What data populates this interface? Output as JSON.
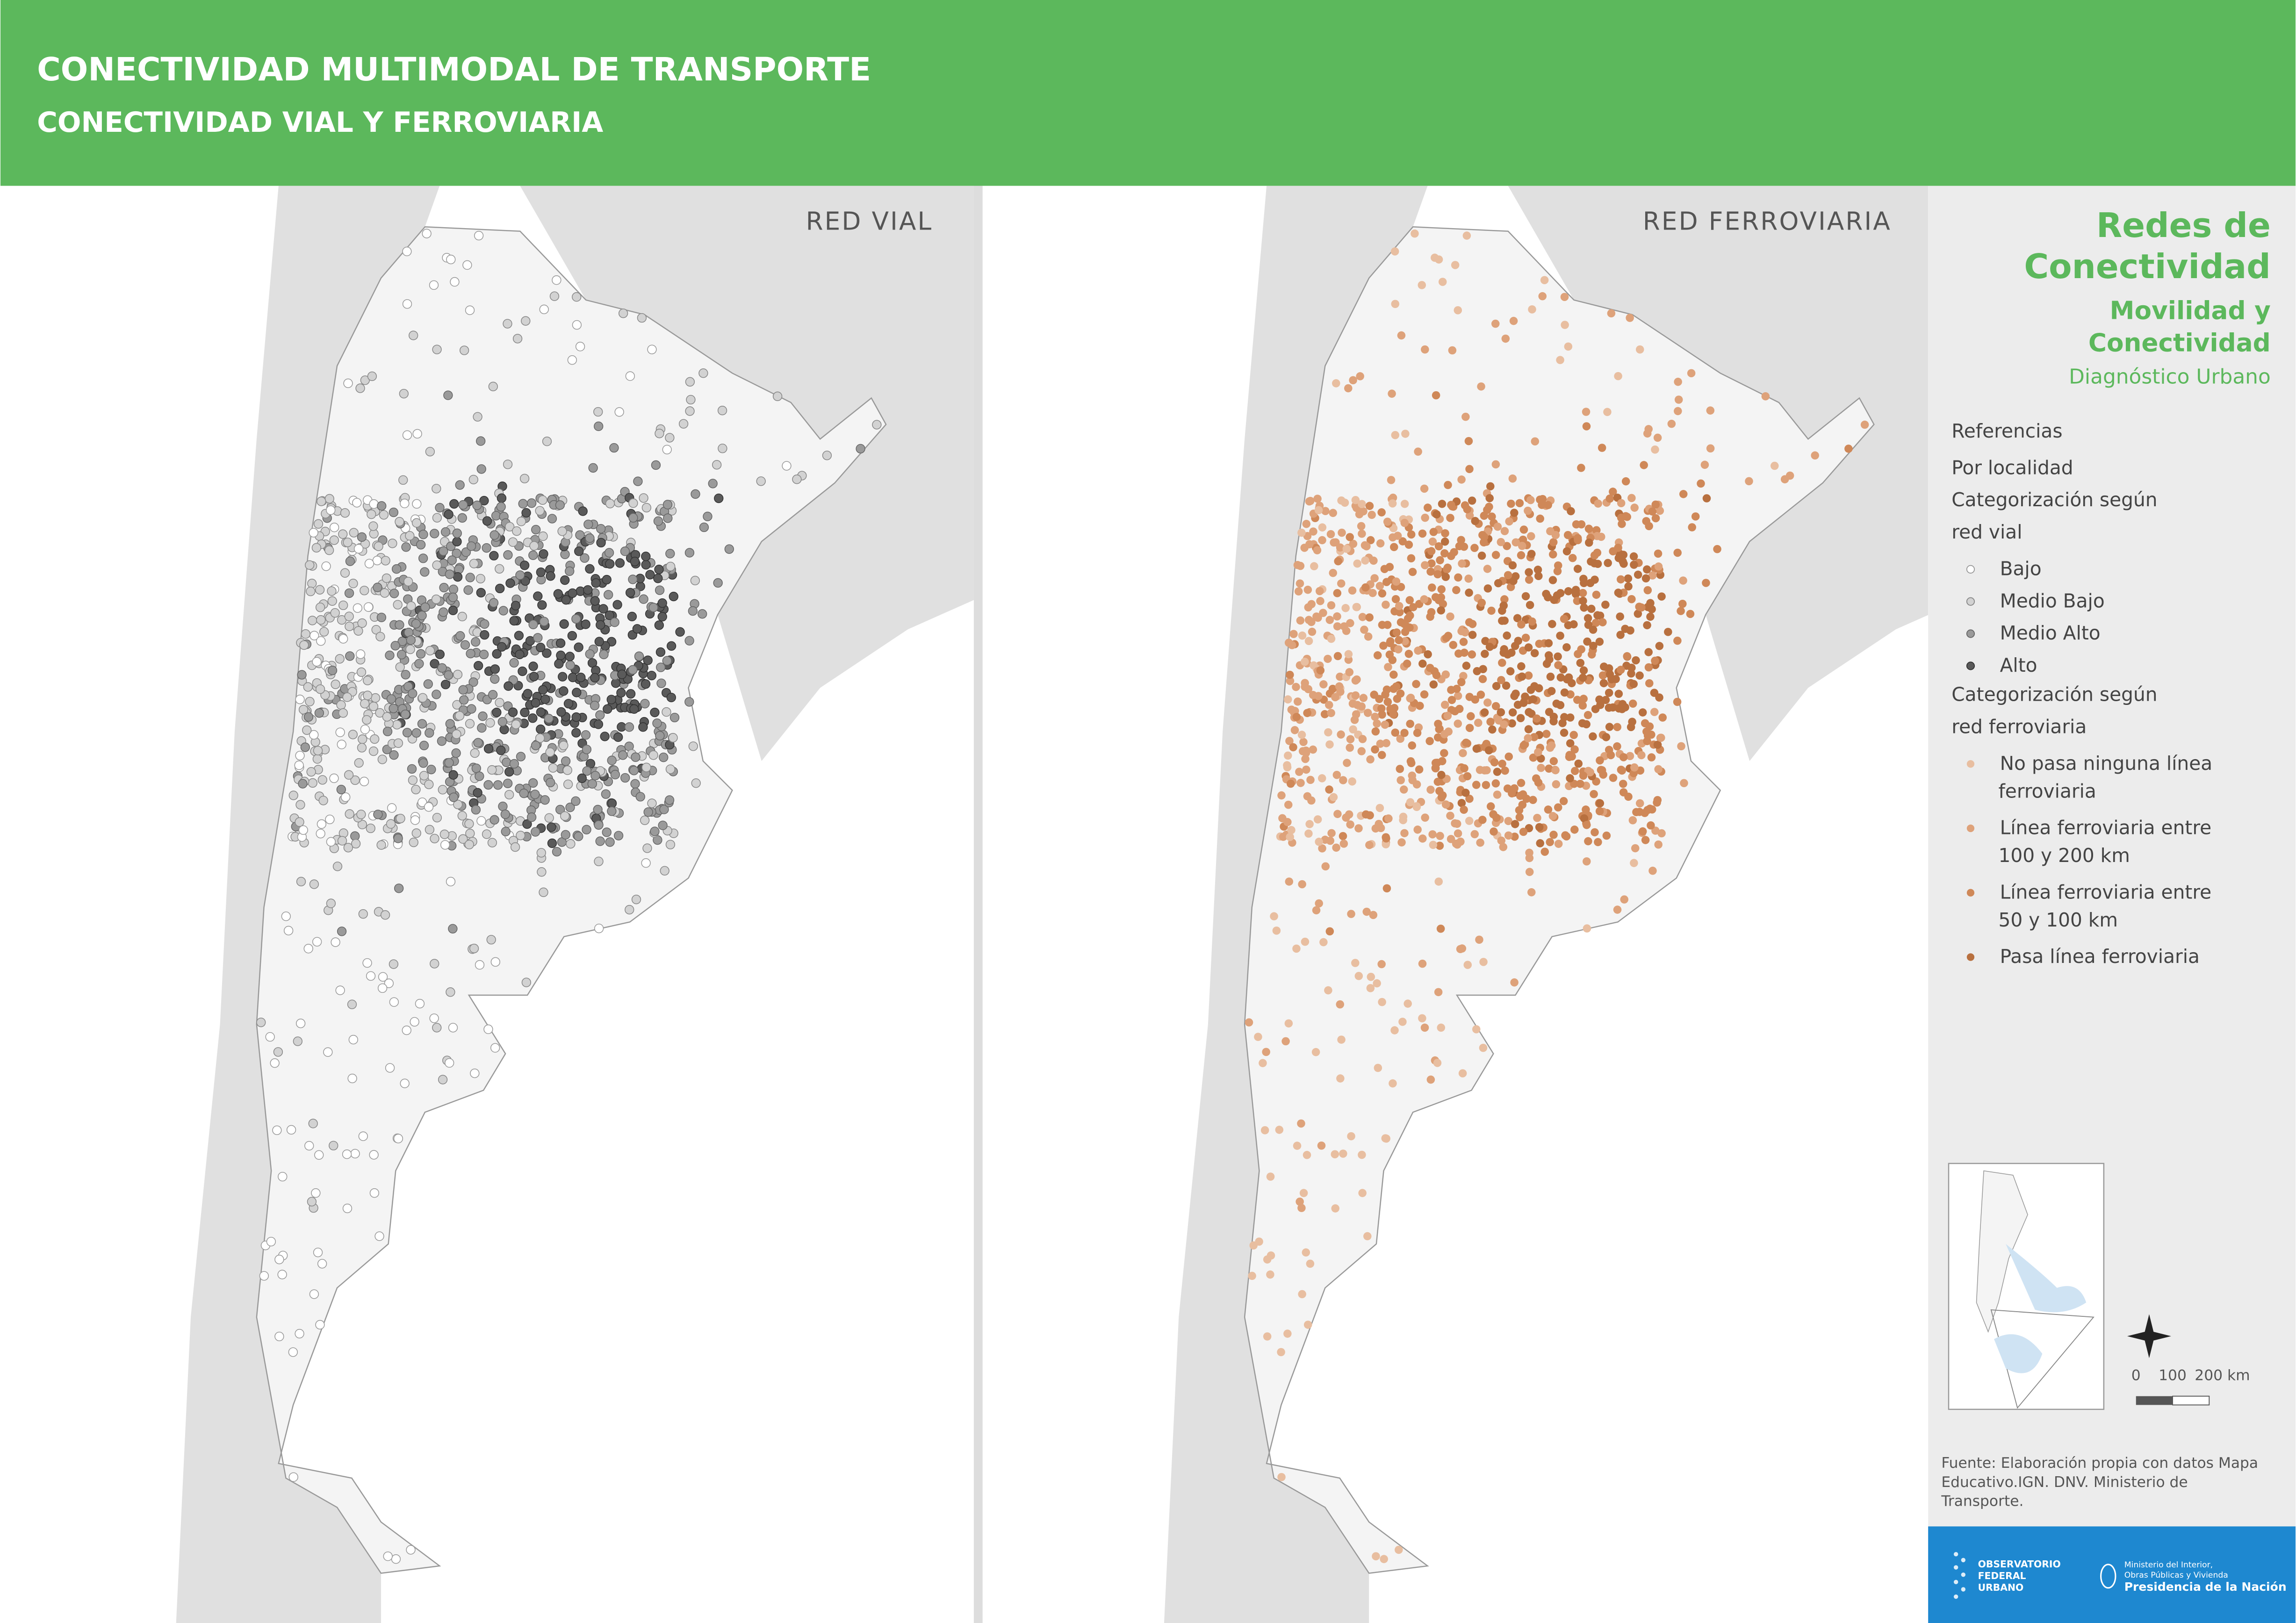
{
  "header": {
    "title": "CONECTIVIDAD MULTIMODAL DE TRANSPORTE",
    "subtitle": "CONECTIVIDAD VIAL Y FERROVIARIA"
  },
  "maps": [
    {
      "label": "RED VIAL"
    },
    {
      "label": "RED FERROVIARIA"
    }
  ],
  "sidebar": {
    "title_lines": [
      "Redes de",
      "Conectividad"
    ],
    "subtitle_lines": [
      "Movilidad y",
      "Conectividad"
    ],
    "tagline": "Diagnóstico Urbano",
    "legend": {
      "heading": "Referencias",
      "subheading": "Por localidad",
      "groups": [
        {
          "title_lines": [
            "Categorización según",
            "red vial"
          ],
          "items": [
            [
              "Bajo"
            ],
            [
              "Medio Bajo"
            ],
            [
              "Medio Alto"
            ],
            [
              "Alto"
            ]
          ]
        },
        {
          "title_lines": [
            "Categorización según",
            "red ferroviaria"
          ],
          "items": [
            [
              "No pasa ninguna línea",
              "ferroviaria"
            ],
            [
              "Línea ferroviaria entre",
              "100 y 200 km"
            ],
            [
              "Línea ferroviaria entre",
              "50 y 100 km"
            ],
            [
              "Pasa línea ferroviaria"
            ]
          ]
        }
      ]
    },
    "scale": {
      "labels": [
        "0",
        "100",
        "200 km"
      ]
    },
    "source_lines": [
      "Fuente: Elaboración propia con datos Mapa",
      "Educativo.IGN. DNV. Ministerio de",
      "Transporte."
    ]
  },
  "footer": {
    "observatory_lines": [
      "OBSERVATORIO",
      "FEDERAL",
      "URBANO"
    ],
    "ministry_lines": [
      "Ministerio del Interior,",
      "Obras Públicas y Vivienda"
    ],
    "presidency": "Presidencia de la Nación"
  }
}
